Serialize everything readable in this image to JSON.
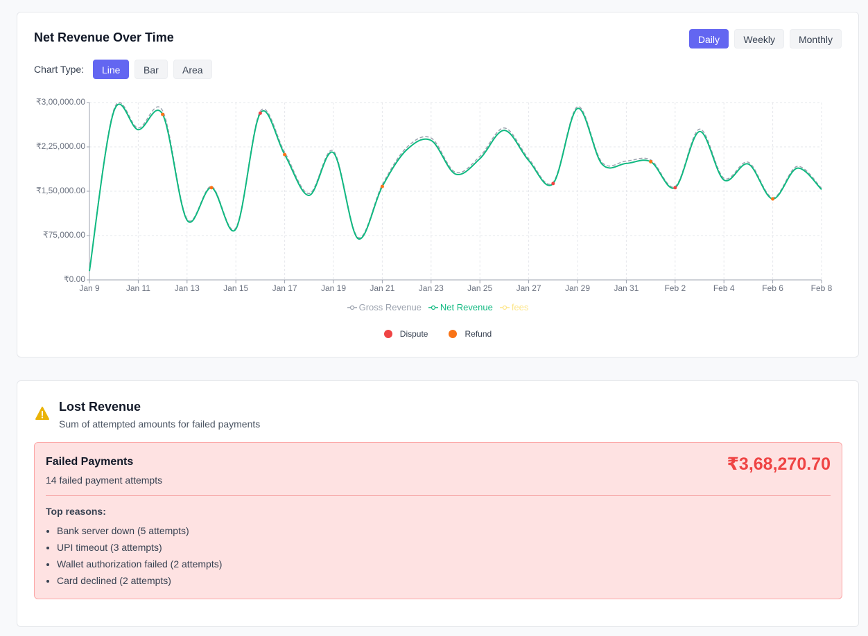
{
  "header": {
    "title": "Net Revenue Over Time",
    "period_options": [
      "Daily",
      "Weekly",
      "Monthly"
    ],
    "active_period": "Daily",
    "chart_type_label": "Chart Type:",
    "chart_type_options": [
      "Line",
      "Bar",
      "Area"
    ],
    "active_chart_type": "Line"
  },
  "chart_data": {
    "type": "line",
    "categories": [
      "Jan 9",
      null,
      "Jan 11",
      null,
      "Jan 13",
      null,
      "Jan 15",
      null,
      "Jan 17",
      null,
      "Jan 19",
      null,
      "Jan 21",
      null,
      "Jan 23",
      null,
      "Jan 25",
      null,
      "Jan 27",
      null,
      "Jan 29",
      null,
      "Jan 31",
      null,
      "Feb 2",
      null,
      "Feb 4",
      null,
      "Feb 6",
      null,
      "Feb 8"
    ],
    "ylim": [
      0,
      300000
    ],
    "yticks": [
      {
        "value": 0,
        "label": "₹0.00"
      },
      {
        "value": 75000,
        "label": "₹75,000.00"
      },
      {
        "value": 150000,
        "label": "₹1,50,000.00"
      },
      {
        "value": 225000,
        "label": "₹2,25,000.00"
      },
      {
        "value": 300000,
        "label": "₹3,00,000.00"
      }
    ],
    "grid": true,
    "series": [
      {
        "name": "Gross Revenue",
        "color": "#9ca3af",
        "dashed": true,
        "values": [
          16000,
          288000,
          257000,
          286000,
          103000,
          158000,
          88000,
          285000,
          216000,
          146000,
          218000,
          72000,
          161000,
          224000,
          240000,
          182000,
          209000,
          257000,
          205000,
          165000,
          293000,
          199000,
          201000,
          203000,
          158000,
          255000,
          172000,
          199000,
          139000,
          192000,
          155000
        ]
      },
      {
        "name": "Net Revenue",
        "color": "#10b981",
        "dashed": false,
        "values": [
          15000,
          285000,
          254000,
          280000,
          101000,
          156000,
          86000,
          282000,
          212000,
          143000,
          215000,
          70000,
          158000,
          220000,
          236000,
          179000,
          205000,
          253000,
          202000,
          163000,
          290000,
          196000,
          197000,
          200000,
          156000,
          251000,
          169000,
          196000,
          137000,
          189000,
          153000
        ]
      },
      {
        "name": "fees",
        "color": "#fde68a",
        "dashed": false
      }
    ],
    "markers": [
      {
        "name": "Dispute",
        "color": "#ef4444",
        "values": [
          null,
          null,
          null,
          null,
          null,
          null,
          null,
          282000,
          null,
          null,
          null,
          null,
          null,
          null,
          null,
          null,
          null,
          null,
          null,
          163000,
          null,
          null,
          null,
          null,
          156000,
          null,
          null,
          null,
          null,
          null,
          null
        ]
      },
      {
        "name": "Refund",
        "color": "#f97316",
        "values": [
          null,
          null,
          null,
          280000,
          null,
          156000,
          null,
          null,
          212000,
          null,
          null,
          null,
          158000,
          null,
          null,
          null,
          null,
          null,
          null,
          null,
          null,
          null,
          null,
          200000,
          null,
          null,
          null,
          null,
          137000,
          null,
          null
        ]
      }
    ]
  },
  "lost_revenue": {
    "title": "Lost Revenue",
    "subtitle": "Sum of attempted amounts for failed payments",
    "failed_title": "Failed Payments",
    "failed_count": "14 failed payment attempts",
    "amount": "₹3,68,270.70",
    "reasons_title": "Top reasons:",
    "reasons": [
      "Bank server down (5 attempts)",
      "UPI timeout (3 attempts)",
      "Wallet authorization failed (2 attempts)",
      "Card declined (2 attempts)"
    ]
  }
}
